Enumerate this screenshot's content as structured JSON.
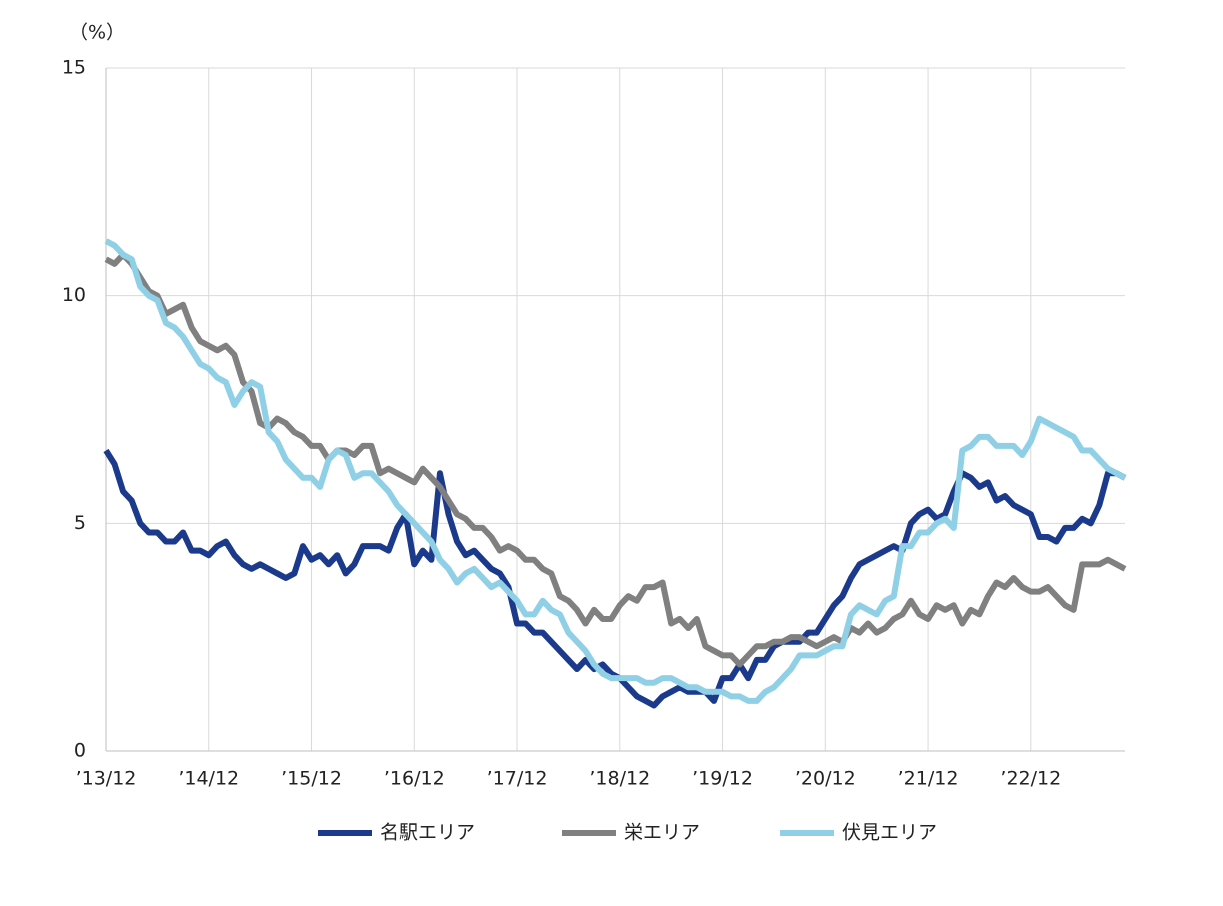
{
  "chart_data": {
    "type": "line",
    "y_label": "（%）",
    "categories": [
      "’13/12",
      null,
      null,
      null,
      null,
      null,
      null,
      null,
      null,
      null,
      null,
      null,
      "’14/12",
      null,
      null,
      null,
      null,
      null,
      null,
      null,
      null,
      null,
      null,
      null,
      "’15/12",
      null,
      null,
      null,
      null,
      null,
      null,
      null,
      null,
      null,
      null,
      null,
      "’16/12",
      null,
      null,
      null,
      null,
      null,
      null,
      null,
      null,
      null,
      null,
      null,
      "’17/12",
      null,
      null,
      null,
      null,
      null,
      null,
      null,
      null,
      null,
      null,
      null,
      "’18/12",
      null,
      null,
      null,
      null,
      null,
      null,
      null,
      null,
      null,
      null,
      null,
      "’19/12",
      null,
      null,
      null,
      null,
      null,
      null,
      null,
      null,
      null,
      null,
      null,
      "’20/12",
      null,
      null,
      null,
      null,
      null,
      null,
      null,
      null,
      null,
      null,
      null,
      "’21/12",
      null,
      null,
      null,
      null,
      null,
      null,
      null,
      null,
      null,
      null,
      null,
      "’22/12",
      null,
      null,
      null,
      null,
      null,
      null,
      null,
      null,
      null,
      null,
      null
    ],
    "series": [
      {
        "name": "名駅エリア",
        "color": "#1b3a8c",
        "values": [
          6.6,
          6.3,
          5.7,
          5.5,
          5.0,
          4.8,
          4.8,
          4.6,
          4.6,
          4.8,
          4.4,
          4.4,
          4.3,
          4.5,
          4.6,
          4.3,
          4.1,
          4.0,
          4.1,
          4.0,
          3.9,
          3.8,
          3.9,
          4.5,
          4.2,
          4.3,
          4.1,
          4.3,
          3.9,
          4.1,
          4.5,
          4.5,
          4.5,
          4.4,
          4.9,
          5.2,
          4.1,
          4.4,
          4.2,
          6.1,
          5.2,
          4.6,
          4.3,
          4.4,
          4.2,
          4.0,
          3.9,
          3.6,
          2.8,
          2.8,
          2.6,
          2.6,
          2.4,
          2.2,
          2.0,
          1.8,
          2.0,
          1.8,
          1.9,
          1.7,
          1.6,
          1.4,
          1.2,
          1.1,
          1.0,
          1.2,
          1.3,
          1.4,
          1.3,
          1.3,
          1.3,
          1.1,
          1.6,
          1.6,
          1.9,
          1.6,
          2.0,
          2.0,
          2.3,
          2.4,
          2.4,
          2.4,
          2.6,
          2.6,
          2.9,
          3.2,
          3.4,
          3.8,
          4.1,
          4.2,
          4.3,
          4.4,
          4.5,
          4.4,
          5.0,
          5.2,
          5.3,
          5.1,
          5.2,
          5.7,
          6.1,
          6.0,
          5.8,
          5.9,
          5.5,
          5.6,
          5.4,
          5.3,
          5.2,
          4.7,
          4.7,
          4.6,
          4.9,
          4.9,
          5.1,
          5.0,
          5.4,
          6.1,
          6.1,
          6.0
        ]
      },
      {
        "name": "栄エリア",
        "color": "#808080",
        "values": [
          10.8,
          10.7,
          10.9,
          10.7,
          10.4,
          10.1,
          10.0,
          9.6,
          9.7,
          9.8,
          9.3,
          9.0,
          8.9,
          8.8,
          8.9,
          8.7,
          8.1,
          7.9,
          7.2,
          7.1,
          7.3,
          7.2,
          7.0,
          6.9,
          6.7,
          6.7,
          6.4,
          6.6,
          6.6,
          6.5,
          6.7,
          6.7,
          6.1,
          6.2,
          6.1,
          6.0,
          5.9,
          6.2,
          6.0,
          5.8,
          5.5,
          5.2,
          5.1,
          4.9,
          4.9,
          4.7,
          4.4,
          4.5,
          4.4,
          4.2,
          4.2,
          4.0,
          3.9,
          3.4,
          3.3,
          3.1,
          2.8,
          3.1,
          2.9,
          2.9,
          3.2,
          3.4,
          3.3,
          3.6,
          3.6,
          3.7,
          2.8,
          2.9,
          2.7,
          2.9,
          2.3,
          2.2,
          2.1,
          2.1,
          1.9,
          2.1,
          2.3,
          2.3,
          2.4,
          2.4,
          2.5,
          2.5,
          2.4,
          2.3,
          2.4,
          2.5,
          2.4,
          2.7,
          2.6,
          2.8,
          2.6,
          2.7,
          2.9,
          3.0,
          3.3,
          3.0,
          2.9,
          3.2,
          3.1,
          3.2,
          2.8,
          3.1,
          3.0,
          3.4,
          3.7,
          3.6,
          3.8,
          3.6,
          3.5,
          3.5,
          3.6,
          3.4,
          3.2,
          3.1,
          4.1,
          4.1,
          4.1,
          4.2,
          4.1,
          4.0
        ]
      },
      {
        "name": "伏見エリア",
        "color": "#8fd0e6",
        "values": [
          11.2,
          11.1,
          10.9,
          10.8,
          10.2,
          10.0,
          9.9,
          9.4,
          9.3,
          9.1,
          8.8,
          8.5,
          8.4,
          8.2,
          8.1,
          7.6,
          7.9,
          8.1,
          8.0,
          7.0,
          6.8,
          6.4,
          6.2,
          6.0,
          6.0,
          5.8,
          6.4,
          6.6,
          6.5,
          6.0,
          6.1,
          6.1,
          5.9,
          5.7,
          5.4,
          5.2,
          5.0,
          4.8,
          4.6,
          4.2,
          4.0,
          3.7,
          3.9,
          4.0,
          3.8,
          3.6,
          3.7,
          3.5,
          3.3,
          3.0,
          3.0,
          3.3,
          3.1,
          3.0,
          2.6,
          2.4,
          2.2,
          1.9,
          1.7,
          1.6,
          1.6,
          1.6,
          1.6,
          1.5,
          1.5,
          1.6,
          1.6,
          1.5,
          1.4,
          1.4,
          1.3,
          1.3,
          1.3,
          1.2,
          1.2,
          1.1,
          1.1,
          1.3,
          1.4,
          1.6,
          1.8,
          2.1,
          2.1,
          2.1,
          2.2,
          2.3,
          2.3,
          3.0,
          3.2,
          3.1,
          3.0,
          3.3,
          3.4,
          4.5,
          4.5,
          4.8,
          4.8,
          5.0,
          5.1,
          4.9,
          6.6,
          6.7,
          6.9,
          6.9,
          6.7,
          6.7,
          6.7,
          6.5,
          6.8,
          7.3,
          7.2,
          7.1,
          7.0,
          6.9,
          6.6,
          6.6,
          6.4,
          6.2,
          6.1,
          6.0
        ]
      }
    ],
    "ylim": [
      0,
      15
    ],
    "yticks": [
      0,
      5,
      10,
      15
    ],
    "grid": true,
    "legend": "bottom"
  }
}
